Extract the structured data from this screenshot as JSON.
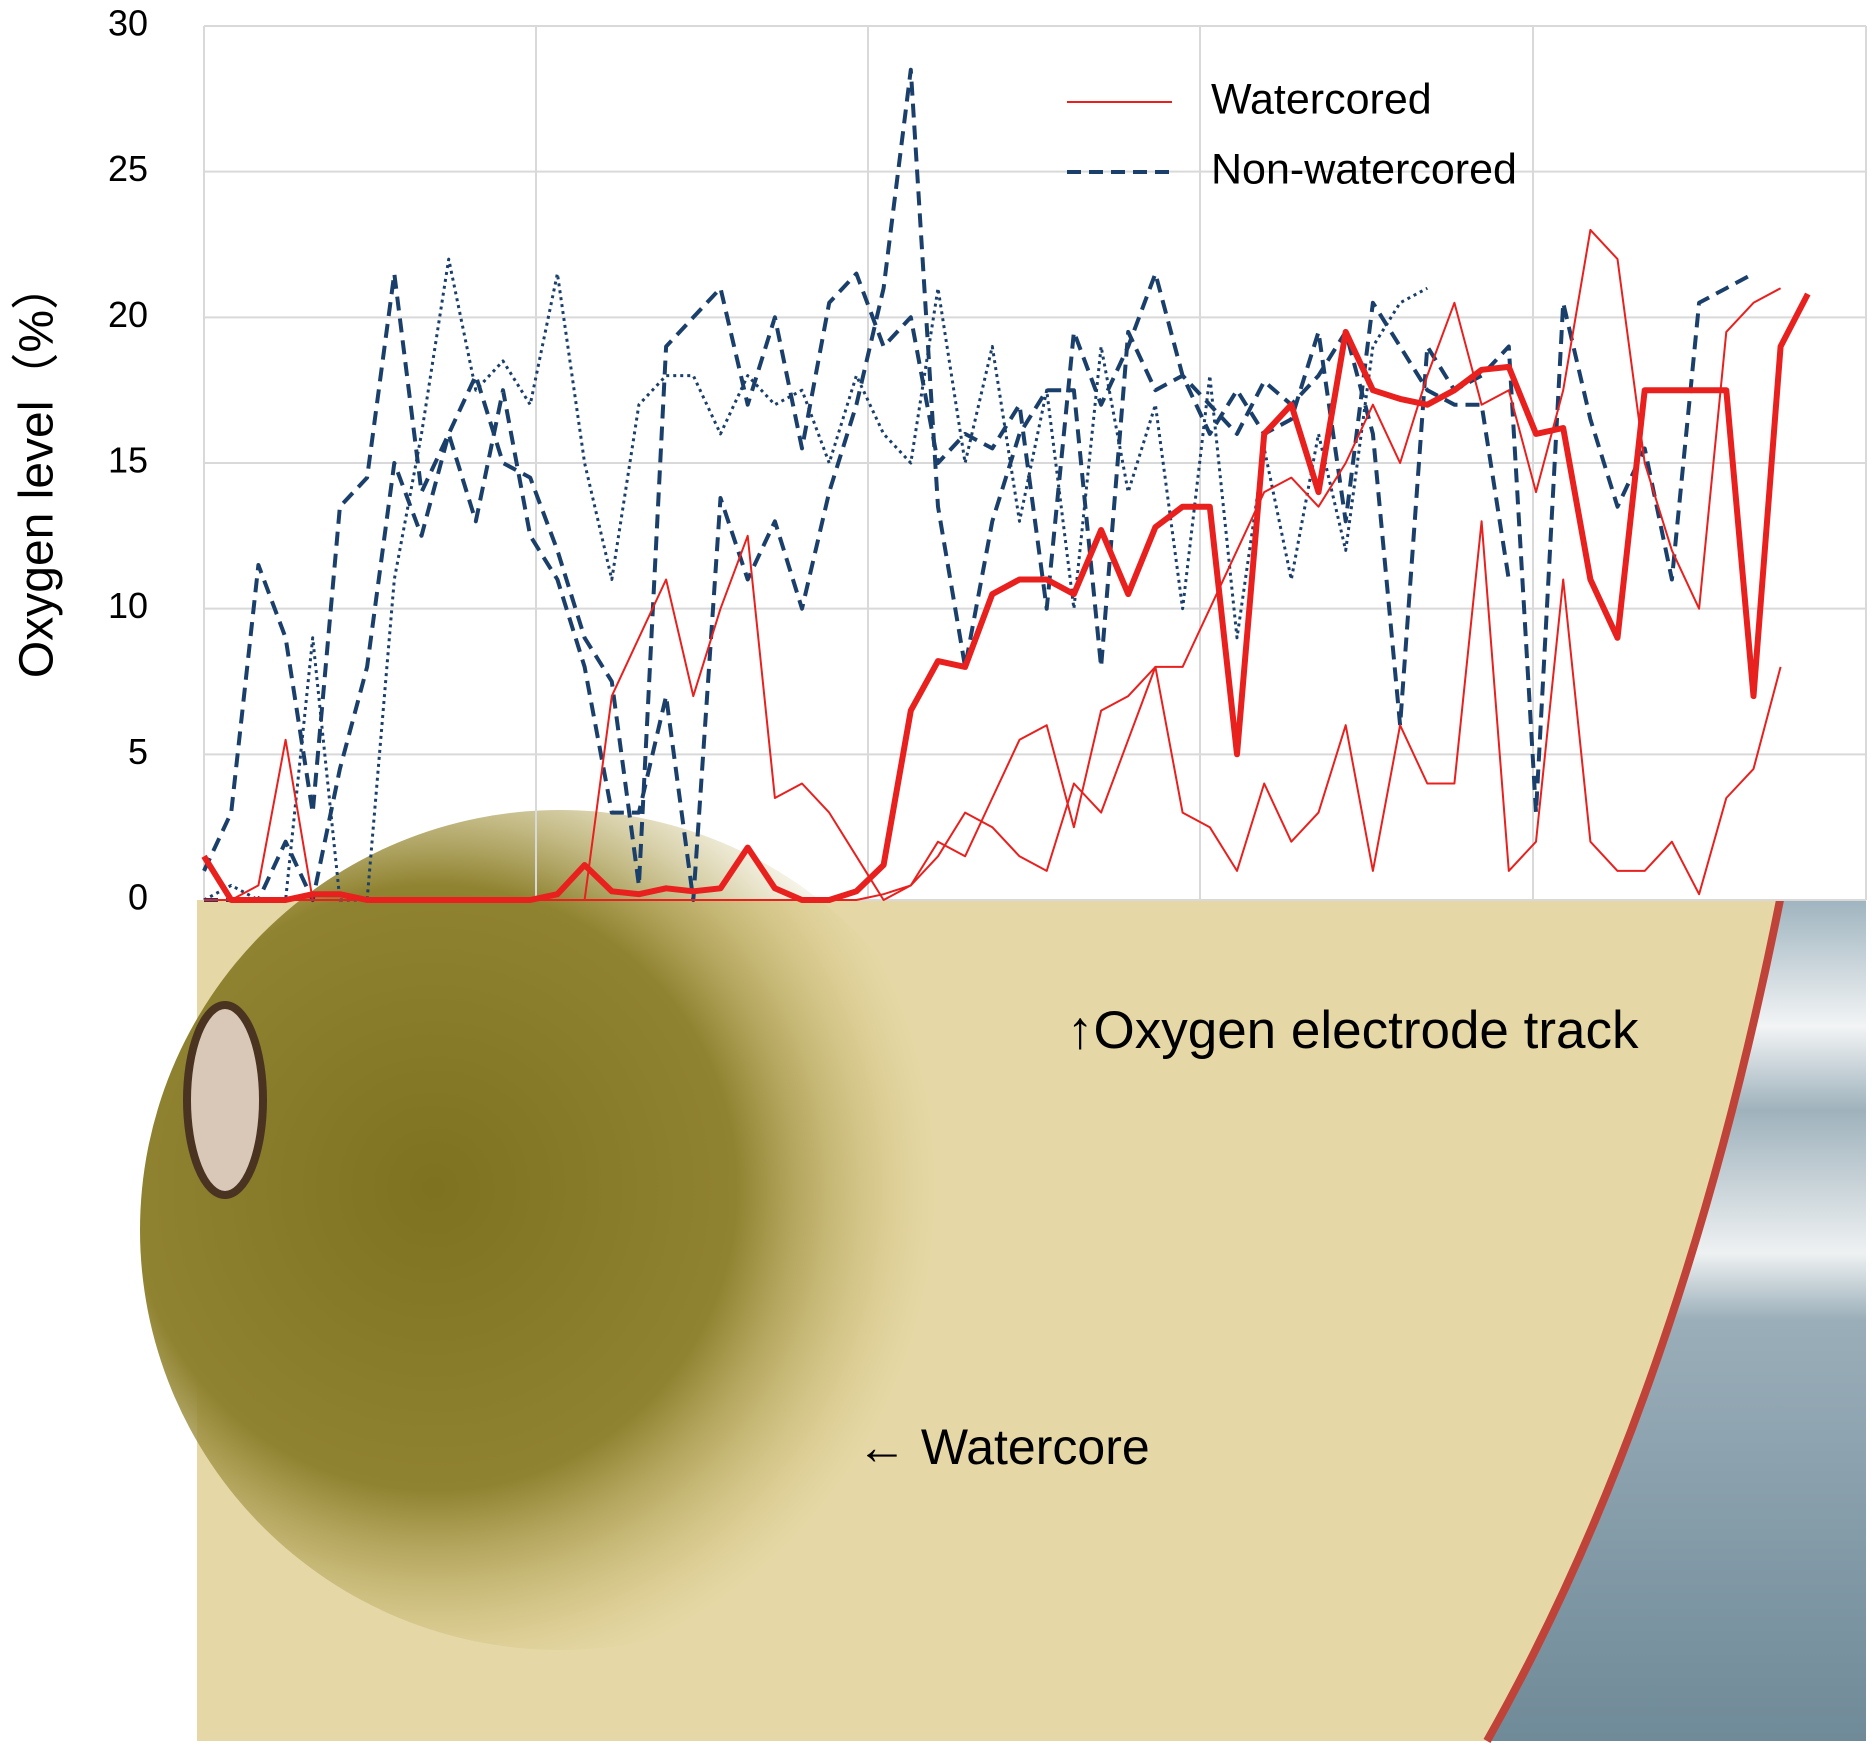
{
  "chart_data": {
    "type": "line",
    "y_label": "Oxygen level（%）",
    "ylim": [
      0,
      30
    ],
    "yticks": [
      0,
      5,
      10,
      15,
      20,
      25,
      30
    ],
    "grid": true,
    "annotations": [
      "↑Oxygen electrode track",
      "← Watercore"
    ],
    "series": [
      {
        "name": "Watercored",
        "color": "#e8201e",
        "style": "thick",
        "values": [
          1.5,
          0,
          0,
          0,
          0.2,
          0.2,
          0,
          0,
          0,
          0,
          0,
          0,
          0,
          0.2,
          1.2,
          0.3,
          0.2,
          0.4,
          0.3,
          0.4,
          1.8,
          0.4,
          0,
          0,
          0.3,
          1.2,
          6.5,
          8.2,
          8,
          10.5,
          11,
          11,
          10.5,
          12.7,
          10.5,
          12.8,
          13.5,
          13.5,
          5,
          16,
          17,
          14,
          19.5,
          17.5,
          17.2,
          17,
          17.5,
          18.2,
          18.3,
          16,
          16.2,
          11,
          9,
          17.5,
          17.5,
          17.5,
          17.5,
          7,
          19,
          20.8
        ]
      },
      {
        "name": "Watercored",
        "color": "#e8201e",
        "style": "thin",
        "values": [
          0,
          0,
          0.5,
          5.5,
          0,
          0,
          0,
          0,
          0,
          0,
          0,
          0,
          0,
          0,
          0,
          7,
          9,
          11,
          7,
          10,
          12.5,
          3.5,
          4,
          3,
          1.5,
          0,
          0.5,
          2,
          1.5,
          3.5,
          5.5,
          6,
          2.5,
          6.5,
          7,
          8,
          8,
          10,
          12,
          14,
          14.5,
          13.5,
          15,
          17,
          15,
          18,
          20.5,
          17,
          17.5,
          14,
          17.5,
          23,
          22,
          15,
          12,
          10,
          19.5,
          20.5,
          21,
          null
        ]
      },
      {
        "name": "Watercored",
        "color": "#e8201e",
        "style": "thin",
        "values": [
          0,
          0,
          0,
          0,
          0,
          0,
          0,
          0,
          0,
          0,
          0,
          0,
          0,
          0,
          0,
          0,
          0,
          0,
          0,
          0,
          0,
          0,
          0,
          0,
          0,
          0.2,
          0.5,
          1.5,
          3,
          2.5,
          1.5,
          1,
          4,
          3,
          5.5,
          8,
          3,
          2.5,
          1,
          4,
          2,
          3,
          6,
          1,
          6,
          4,
          4,
          13,
          1,
          2,
          11,
          2,
          1,
          1,
          2,
          0.2,
          3.5,
          4.5,
          8,
          null
        ]
      },
      {
        "name": "Non-watercored",
        "color": "#1b3f6b",
        "style": "dashed",
        "values": [
          1,
          3,
          11.5,
          9,
          3,
          13.5,
          14.5,
          21.5,
          14,
          16,
          13,
          17.5,
          12.5,
          11,
          8,
          3,
          3,
          7,
          0,
          13.8,
          11,
          13,
          10,
          14,
          17,
          21,
          28.5,
          13.5,
          8,
          13,
          16,
          17.5,
          17.5,
          8,
          19.5,
          17.5,
          18,
          17,
          16,
          17.8,
          17,
          18,
          19.5,
          16,
          6,
          19,
          17.5,
          18,
          19,
          3,
          20.5,
          16.5,
          13.5,
          15.5,
          11,
          20.5,
          21,
          21.5,
          null,
          null
        ]
      },
      {
        "name": "Non-watercored",
        "color": "#1b3f6b",
        "style": "dashed",
        "values": [
          0,
          0,
          0,
          2,
          0,
          4.5,
          8,
          15,
          12.5,
          16,
          18,
          15,
          14.5,
          12,
          9,
          7.5,
          0.5,
          19,
          20,
          21,
          17,
          20,
          15.5,
          20.5,
          21.5,
          19,
          20,
          15,
          16,
          15.5,
          17,
          10,
          19.5,
          17,
          19,
          21.5,
          18,
          16,
          17.5,
          16,
          16.5,
          19.5,
          13,
          20.5,
          19,
          17.5,
          17,
          17,
          11,
          null,
          null,
          null,
          null,
          null,
          null,
          null,
          null,
          null,
          null,
          null
        ]
      },
      {
        "name": "Non-watercored",
        "color": "#1b3f6b",
        "style": "dotted",
        "values": [
          0,
          0.5,
          0,
          0,
          9,
          0,
          0,
          11,
          16,
          22,
          17.5,
          18.5,
          17,
          21.5,
          15,
          11,
          17,
          18,
          18,
          16,
          18,
          17,
          17.5,
          15,
          18,
          16,
          15,
          21,
          15,
          19,
          13,
          17.5,
          10,
          19,
          14,
          17,
          10,
          18,
          9,
          15.5,
          11,
          16,
          12,
          19,
          20.5,
          21,
          null,
          null,
          null,
          null,
          null,
          null,
          null,
          null,
          null,
          null,
          null,
          null,
          null,
          null
        ]
      }
    ],
    "legend": {
      "position": "upper right"
    }
  }
}
